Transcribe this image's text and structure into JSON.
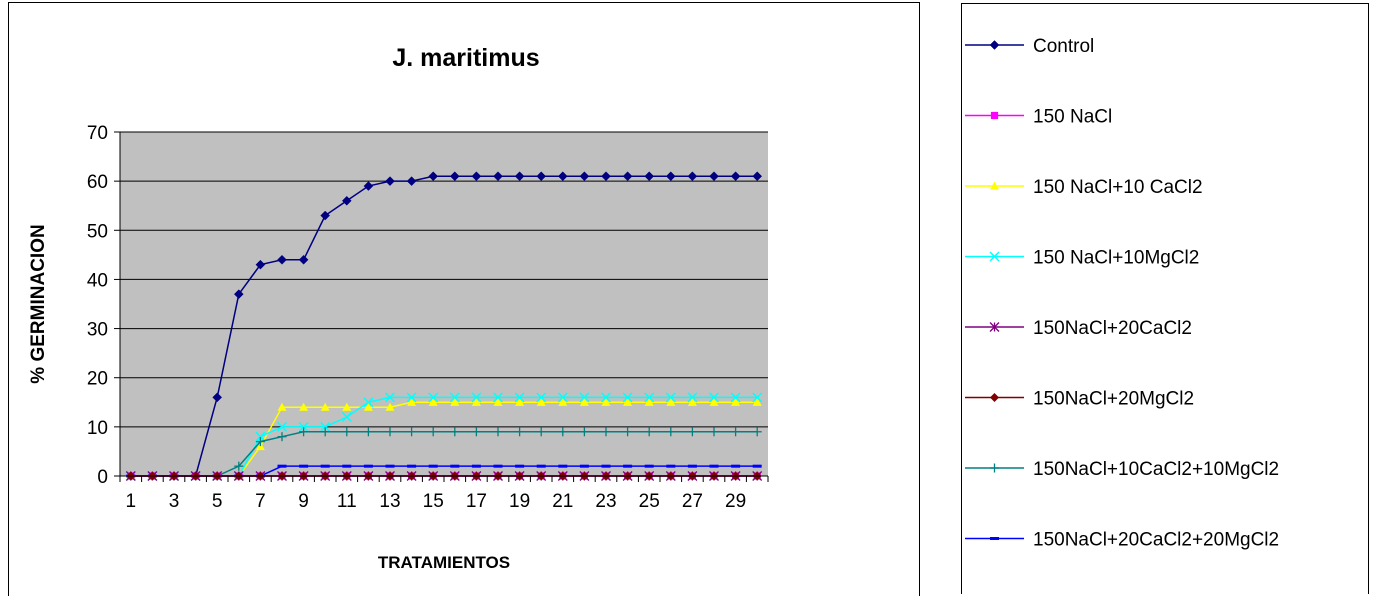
{
  "chart_data": {
    "type": "line",
    "title": "J. maritimus",
    "xlabel": "TRATAMIENTOS",
    "ylabel": "% GERMINACION",
    "x": [
      1,
      2,
      3,
      4,
      5,
      6,
      7,
      8,
      9,
      10,
      11,
      12,
      13,
      14,
      15,
      16,
      17,
      18,
      19,
      20,
      21,
      22,
      23,
      24,
      25,
      26,
      27,
      28,
      29,
      30
    ],
    "x_tick_labels": [
      "1",
      "3",
      "5",
      "7",
      "9",
      "11",
      "13",
      "15",
      "17",
      "19",
      "21",
      "23",
      "25",
      "27",
      "29"
    ],
    "ylim": [
      0,
      70
    ],
    "y_ticks": [
      0,
      10,
      20,
      30,
      40,
      50,
      60,
      70
    ],
    "grid": true,
    "plot_background": "#c0c0c0",
    "legend_position": "right",
    "series": [
      {
        "name": "Control",
        "color": "#000080",
        "marker": "diamond",
        "values": [
          0,
          0,
          0,
          0,
          16,
          37,
          43,
          44,
          44,
          53,
          56,
          59,
          60,
          60,
          61,
          61,
          61,
          61,
          61,
          61,
          61,
          61,
          61,
          61,
          61,
          61,
          61,
          61,
          61,
          61
        ]
      },
      {
        "name": "150 NaCl",
        "color": "#ff00ff",
        "marker": "square",
        "values": [
          0,
          0,
          0,
          0,
          0,
          0,
          0,
          0,
          0,
          0,
          0,
          0,
          0,
          0,
          0,
          0,
          0,
          0,
          0,
          0,
          0,
          0,
          0,
          0,
          0,
          0,
          0,
          0,
          0,
          0
        ]
      },
      {
        "name": "150 NaCl+10 CaCl2",
        "color": "#ffff00",
        "marker": "triangle",
        "values": [
          0,
          0,
          0,
          0,
          0,
          0,
          6,
          14,
          14,
          14,
          14,
          14,
          14,
          15,
          15,
          15,
          15,
          15,
          15,
          15,
          15,
          15,
          15,
          15,
          15,
          15,
          15,
          15,
          15,
          15
        ]
      },
      {
        "name": "150 NaCl+10MgCl2",
        "color": "#00ffff",
        "marker": "x",
        "values": [
          0,
          0,
          0,
          0,
          0,
          0,
          8,
          10,
          10,
          10,
          12,
          15,
          16,
          16,
          16,
          16,
          16,
          16,
          16,
          16,
          16,
          16,
          16,
          16,
          16,
          16,
          16,
          16,
          16,
          16
        ]
      },
      {
        "name": "150NaCl+20CaCl2",
        "color": "#800080",
        "marker": "star",
        "values": [
          0,
          0,
          0,
          0,
          0,
          0,
          0,
          0,
          0,
          0,
          0,
          0,
          0,
          0,
          0,
          0,
          0,
          0,
          0,
          0,
          0,
          0,
          0,
          0,
          0,
          0,
          0,
          0,
          0,
          0
        ]
      },
      {
        "name": "150NaCl+20MgCl2",
        "color": "#800000",
        "marker": "circle",
        "values": [
          0,
          0,
          0,
          0,
          0,
          0,
          0,
          0,
          0,
          0,
          0,
          0,
          0,
          0,
          0,
          0,
          0,
          0,
          0,
          0,
          0,
          0,
          0,
          0,
          0,
          0,
          0,
          0,
          0,
          0
        ]
      },
      {
        "name": "150NaCl+10CaCl2+10MgCl2",
        "color": "#008080",
        "marker": "plus",
        "values": [
          0,
          0,
          0,
          0,
          0,
          2,
          7,
          8,
          9,
          9,
          9,
          9,
          9,
          9,
          9,
          9,
          9,
          9,
          9,
          9,
          9,
          9,
          9,
          9,
          9,
          9,
          9,
          9,
          9,
          9
        ]
      },
      {
        "name": "150NaCl+20CaCl2+20MgCl2",
        "color": "#0000ff",
        "marker": "dash",
        "values": [
          0,
          0,
          0,
          0,
          0,
          0,
          0,
          2,
          2,
          2,
          2,
          2,
          2,
          2,
          2,
          2,
          2,
          2,
          2,
          2,
          2,
          2,
          2,
          2,
          2,
          2,
          2,
          2,
          2,
          2
        ]
      }
    ]
  }
}
